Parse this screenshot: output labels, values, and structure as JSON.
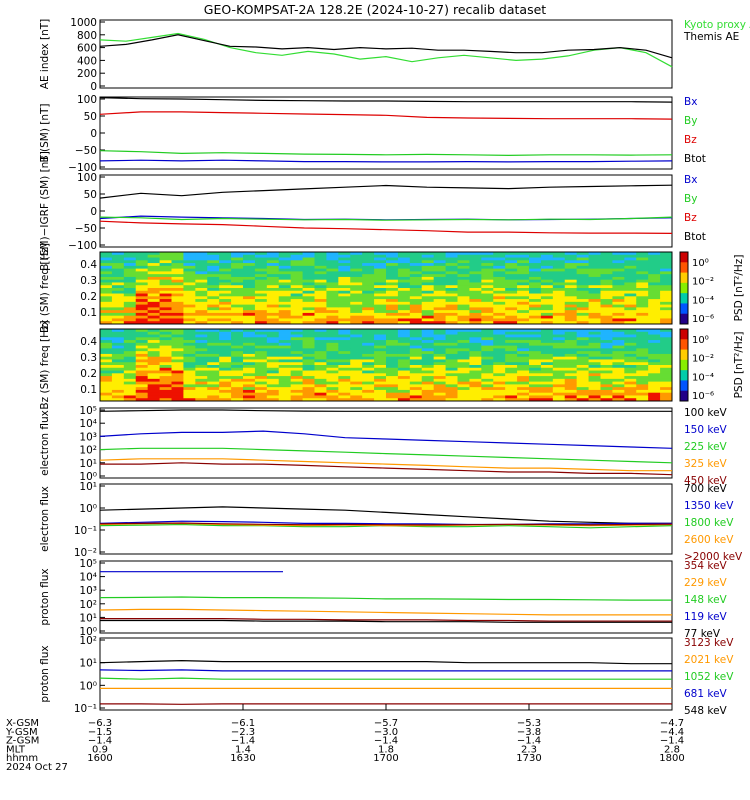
{
  "title": "GEO-KOMPSAT-2A 128.2E (2024-10-27) recalib dataset",
  "chart_data": [
    {
      "id": "ae",
      "type": "line",
      "ylabel": "AE index [nT]",
      "yticks": [
        "1000",
        "800",
        "600",
        "400",
        "200",
        "0"
      ],
      "ylim": [
        0,
        1000
      ],
      "series": [
        {
          "name": "Kyoto proxy AE",
          "color": "#33dd33",
          "values": [
            720,
            700,
            760,
            820,
            730,
            600,
            520,
            480,
            540,
            500,
            420,
            460,
            380,
            440,
            480,
            440,
            400,
            420,
            470,
            560,
            600,
            520,
            300
          ]
        },
        {
          "name": "Themis AE",
          "color": "#000000",
          "values": [
            620,
            650,
            720,
            800,
            710,
            620,
            610,
            580,
            600,
            570,
            600,
            580,
            590,
            560,
            560,
            540,
            520,
            520,
            560,
            570,
            600,
            560,
            440
          ]
        }
      ]
    },
    {
      "id": "b_sm",
      "type": "line",
      "ylabel": "B (SM) [nT]",
      "yticks": [
        "100",
        "50",
        "0",
        "−50",
        "−100"
      ],
      "ylim": [
        -100,
        100
      ],
      "series": [
        {
          "name": "Bx",
          "color": "#0000cc",
          "values": [
            -82,
            -80,
            -82,
            -80,
            -82,
            -84,
            -84,
            -85,
            -85,
            -84,
            -85,
            -84,
            -84,
            -83,
            -82
          ]
        },
        {
          "name": "By",
          "color": "#22cc22",
          "values": [
            -52,
            -55,
            -60,
            -58,
            -60,
            -62,
            -63,
            -64,
            -63,
            -64,
            -66,
            -64,
            -64,
            -65,
            -64
          ]
        },
        {
          "name": "Bz",
          "color": "#dd0000",
          "values": [
            55,
            62,
            62,
            60,
            58,
            56,
            54,
            52,
            46,
            44,
            43,
            42,
            42,
            42,
            41
          ]
        },
        {
          "name": "Btot",
          "color": "#000000",
          "values": [
            104,
            101,
            100,
            98,
            96,
            95,
            94,
            94,
            93,
            92,
            92,
            92,
            92,
            92,
            91
          ]
        }
      ]
    },
    {
      "id": "b_igrf",
      "type": "line",
      "ylabel": "B (SM)−IGRF (SM) [nT]",
      "yticks": [
        "100",
        "50",
        "0",
        "−50",
        "−100"
      ],
      "ylim": [
        -100,
        100
      ],
      "series": [
        {
          "name": "Bx",
          "color": "#0000cc",
          "values": [
            -22,
            -15,
            -18,
            -20,
            -22,
            -25,
            -24,
            -26,
            -25,
            -24,
            -26,
            -25,
            -24,
            -22,
            -20
          ]
        },
        {
          "name": "By",
          "color": "#22cc22",
          "values": [
            -18,
            -20,
            -25,
            -22,
            -24,
            -26,
            -25,
            -27,
            -26,
            -25,
            -26,
            -24,
            -25,
            -22,
            -18
          ]
        },
        {
          "name": "Bz",
          "color": "#dd0000",
          "values": [
            -30,
            -35,
            -38,
            -40,
            -45,
            -50,
            -52,
            -55,
            -58,
            -62,
            -62,
            -64,
            -65,
            -65,
            -66
          ]
        },
        {
          "name": "Btot",
          "color": "#000000",
          "values": [
            38,
            52,
            45,
            55,
            60,
            65,
            70,
            75,
            70,
            68,
            66,
            70,
            72,
            74,
            76
          ]
        }
      ]
    },
    {
      "id": "bx_spec",
      "type": "heatmap",
      "ylabel": "Bx (SM) freq [Hz]",
      "yticks": [
        "0.4",
        "0.3",
        "0.2",
        "0.1"
      ],
      "ylim": [
        0.02,
        0.5
      ],
      "colorbar": {
        "label": "PSD [nT²/Hz]",
        "ticks": [
          "10⁰",
          "10⁻²",
          "10⁻⁴",
          "10⁻⁶"
        ]
      }
    },
    {
      "id": "bz_spec",
      "type": "heatmap",
      "ylabel": "Bz (SM) freq [Hz]",
      "yticks": [
        "0.4",
        "0.3",
        "0.2",
        "0.1"
      ],
      "ylim": [
        0.02,
        0.5
      ],
      "colorbar": {
        "label": "PSD [nT²/Hz]",
        "ticks": [
          "10⁰",
          "10⁻²",
          "10⁻⁴",
          "10⁻⁶"
        ]
      }
    },
    {
      "id": "e_flux_low",
      "type": "line",
      "ylabel": "electron flux",
      "yticks": [
        "10⁵",
        "10⁴",
        "10³",
        "10²",
        "10¹",
        "10⁰"
      ],
      "ylim_log10": [
        0,
        5
      ],
      "series": [
        {
          "name": "100 keV",
          "color": "#000000",
          "values": [
            4.9,
            4.95,
            5.0,
            5.0,
            4.95,
            4.92,
            4.9,
            4.9,
            4.9,
            4.9,
            4.9,
            4.9,
            4.9,
            4.9,
            4.9
          ]
        },
        {
          "name": "150 keV",
          "color": "#0000cc",
          "values": [
            3.0,
            3.2,
            3.3,
            3.3,
            3.4,
            3.2,
            2.9,
            2.8,
            2.7,
            2.6,
            2.5,
            2.4,
            2.3,
            2.2,
            2.1
          ]
        },
        {
          "name": "225 keV",
          "color": "#22cc22",
          "values": [
            2.0,
            2.1,
            2.1,
            2.1,
            2.0,
            1.9,
            1.8,
            1.7,
            1.6,
            1.5,
            1.4,
            1.3,
            1.2,
            1.1,
            1.0
          ]
        },
        {
          "name": "325 keV",
          "color": "#ff9900",
          "values": [
            1.2,
            1.3,
            1.3,
            1.3,
            1.2,
            1.1,
            1.0,
            0.9,
            0.8,
            0.7,
            0.6,
            0.6,
            0.5,
            0.4,
            0.4
          ]
        },
        {
          "name": "450 keV",
          "color": "#880000",
          "values": [
            0.9,
            0.9,
            1.0,
            0.9,
            0.9,
            0.8,
            0.7,
            0.6,
            0.5,
            0.4,
            0.3,
            0.3,
            0.2,
            0.2,
            0.1
          ]
        }
      ]
    },
    {
      "id": "e_flux_high",
      "type": "line",
      "ylabel": "electron flux",
      "yticks": [
        "10¹",
        "10⁰",
        "10⁻¹",
        "10⁻²"
      ],
      "ylim_log10": [
        -2,
        1
      ],
      "series": [
        {
          "name": "700 keV",
          "color": "#000000",
          "values": [
            -0.1,
            -0.05,
            0.0,
            0.05,
            0.0,
            -0.05,
            -0.1,
            -0.2,
            -0.3,
            -0.4,
            -0.5,
            -0.6,
            -0.65,
            -0.7,
            -0.7
          ]
        },
        {
          "name": "1350 keV",
          "color": "#0000cc",
          "values": [
            -0.7,
            -0.65,
            -0.6,
            -0.62,
            -0.65,
            -0.7,
            -0.7,
            -0.72,
            -0.72,
            -0.75,
            -0.75,
            -0.72,
            -0.72,
            -0.7,
            -0.7
          ]
        },
        {
          "name": "1800 keV",
          "color": "#22cc22",
          "values": [
            -0.8,
            -0.78,
            -0.75,
            -0.8,
            -0.8,
            -0.85,
            -0.85,
            -0.8,
            -0.85,
            -0.85,
            -0.8,
            -0.85,
            -0.9,
            -0.85,
            -0.8
          ]
        },
        {
          "name": "2600 keV",
          "color": "#ff9900",
          "values": [
            -0.75,
            -0.72,
            -0.7,
            -0.75,
            -0.78,
            -0.8,
            -0.78,
            -0.8,
            -0.8,
            -0.78,
            -0.75,
            -0.78,
            -0.8,
            -0.78,
            -0.75
          ]
        },
        {
          "name": ">2000 keV",
          "color": "#880000",
          "values": [
            -0.72,
            -0.7,
            -0.68,
            -0.72,
            -0.74,
            -0.76,
            -0.75,
            -0.76,
            -0.77,
            -0.76,
            -0.74,
            -0.75,
            -0.77,
            -0.75,
            -0.73
          ]
        }
      ]
    },
    {
      "id": "p_flux_low",
      "type": "line",
      "ylabel": "proton flux",
      "yticks": [
        "10⁵",
        "10⁴",
        "10³",
        "10²",
        "10¹",
        "10⁰"
      ],
      "ylim_log10": [
        -0.3,
        5.2
      ],
      "series": [
        {
          "name": "354 keV",
          "color": "#880000",
          "values": [
            0.7,
            0.7,
            0.7,
            0.7,
            0.65,
            0.65,
            0.6,
            0.6,
            0.6,
            0.55,
            0.55,
            0.5,
            0.5,
            0.5,
            0.5
          ]
        },
        {
          "name": "229 keV",
          "color": "#ff9900",
          "values": [
            1.4,
            1.45,
            1.45,
            1.4,
            1.35,
            1.3,
            1.25,
            1.2,
            1.15,
            1.1,
            1.05,
            1.0,
            1.0,
            1.0,
            1.0
          ]
        },
        {
          "name": "148 keV",
          "color": "#22cc22",
          "values": [
            2.4,
            2.42,
            2.45,
            2.4,
            2.4,
            2.38,
            2.35,
            2.3,
            2.3,
            2.28,
            2.25,
            2.25,
            2.22,
            2.2,
            2.2
          ]
        },
        {
          "name": "119 keV",
          "color": "#0000cc",
          "values": [
            4.5,
            4.5,
            4.5,
            4.5,
            4.5
          ]
        },
        {
          "name": "77 keV",
          "color": "#000000",
          "values": [
            0.55,
            0.55,
            0.55,
            0.55,
            0.5,
            0.5,
            0.5,
            0.45,
            0.45,
            0.45,
            0.4,
            0.4,
            0.4,
            0.4,
            0.4
          ]
        }
      ]
    },
    {
      "id": "p_flux_high",
      "type": "line",
      "ylabel": "proton flux",
      "yticks": [
        "10²",
        "10¹",
        "10⁰",
        "10⁻¹"
      ],
      "ylim_log10": [
        -1.3,
        2
      ],
      "series": [
        {
          "name": "3123 keV",
          "color": "#880000",
          "values": [
            -1.1,
            -1.1,
            -1.12,
            -1.1,
            -1.1,
            -1.1,
            -1.1,
            -1.1,
            -1.1,
            -1.1,
            -1.1,
            -1.1,
            -1.1,
            -1.1,
            -1.1
          ]
        },
        {
          "name": "2021 keV",
          "color": "#ff9900",
          "values": [
            -0.35,
            -0.35,
            -0.35,
            -0.35,
            -0.35,
            -0.35,
            -0.35,
            -0.35,
            -0.35,
            -0.35,
            -0.35,
            -0.35,
            -0.35,
            -0.35,
            -0.35
          ]
        },
        {
          "name": "1052 keV",
          "color": "#22cc22",
          "values": [
            0.15,
            0.1,
            0.15,
            0.1,
            0.1,
            0.1,
            0.1,
            0.1,
            0.1,
            0.1,
            0.1,
            0.1,
            0.1,
            0.1,
            0.1
          ]
        },
        {
          "name": "681 keV",
          "color": "#0000cc",
          "values": [
            0.55,
            0.52,
            0.55,
            0.5,
            0.5,
            0.5,
            0.5,
            0.5,
            0.5,
            0.5,
            0.5,
            0.5,
            0.5,
            0.5,
            0.5
          ]
        },
        {
          "name": "548 keV",
          "color": "#000000",
          "values": [
            0.9,
            0.95,
            1.0,
            0.95,
            0.95,
            0.95,
            0.95,
            0.95,
            0.95,
            0.9,
            0.9,
            0.9,
            0.9,
            0.85,
            0.85
          ]
        }
      ]
    }
  ],
  "x_axis": {
    "row_labels": [
      "X-GSM",
      "Y-GSM",
      "Z-GSM",
      "MLT",
      "hhmm",
      "2024 Oct 27"
    ],
    "columns": [
      [
        "−6.3",
        "−1.5",
        "−1.4",
        "0.9",
        "1600"
      ],
      [
        "−6.1",
        "−2.3",
        "−1.4",
        "1.4",
        "1630"
      ],
      [
        "−5.7",
        "−3.0",
        "−1.4",
        "1.8",
        "1700"
      ],
      [
        "−5.3",
        "−3.8",
        "−1.4",
        "2.3",
        "1730"
      ],
      [
        "−4.7",
        "−4.4",
        "−1.4",
        "2.8",
        "1800"
      ]
    ]
  }
}
